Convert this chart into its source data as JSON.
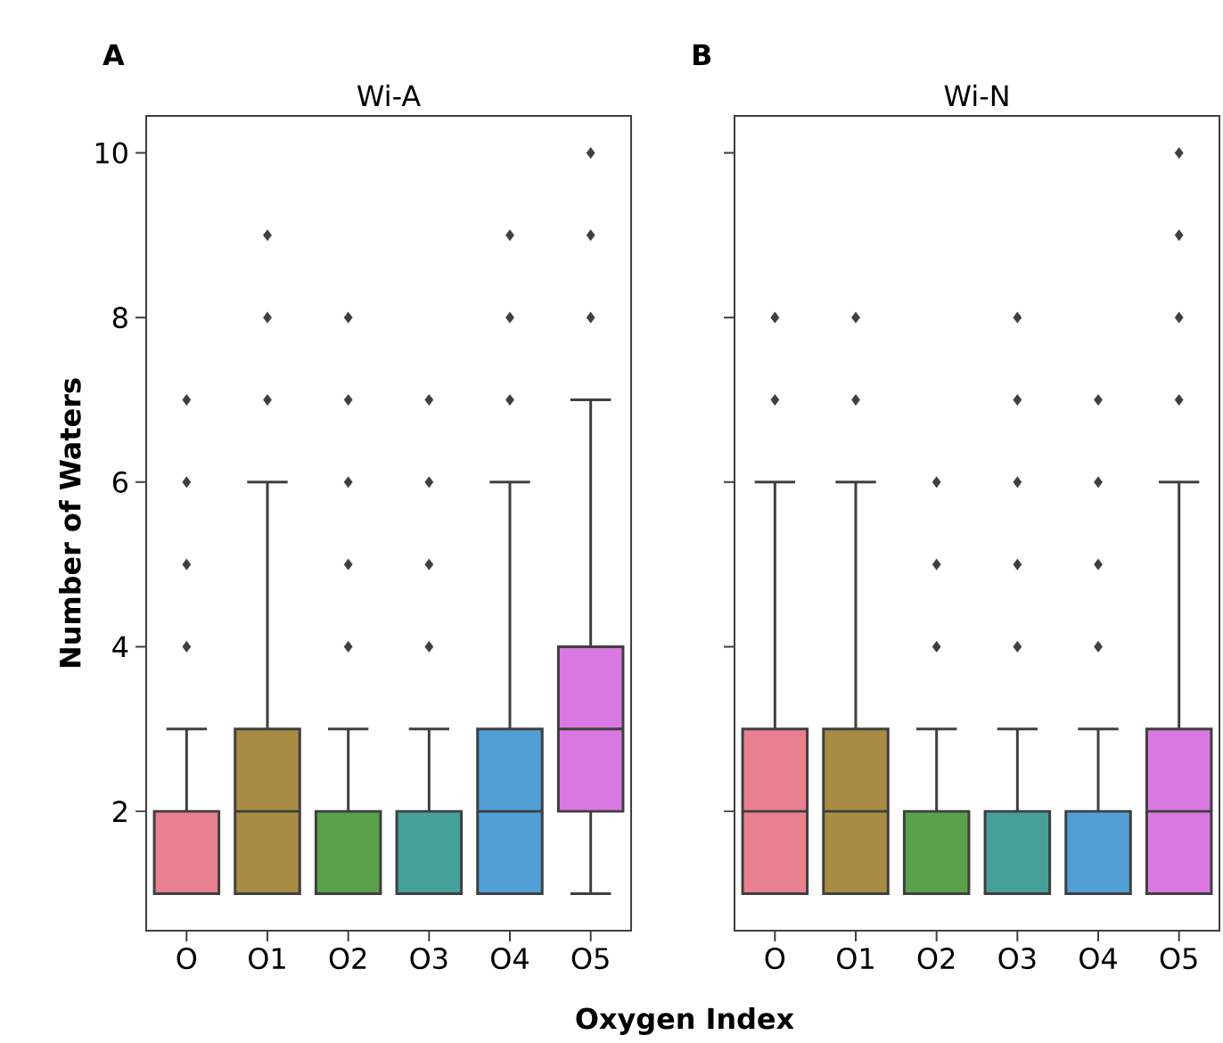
{
  "chart_data": [
    {
      "type": "box",
      "title": "Wi-A",
      "xlabel": "Oxygen Index",
      "ylabel": "Number of Waters",
      "annotations": [
        "A"
      ],
      "marker": "diamond",
      "categories": [
        "O",
        "O1",
        "O2",
        "O3",
        "O4",
        "O5"
      ],
      "colors": [
        "#e8808f",
        "#a88c43",
        "#59a14a",
        "#45a099",
        "#519fd6",
        "#d878e0"
      ],
      "ylim": [
        0.55,
        10.45
      ],
      "yticks": [
        2,
        4,
        6,
        8,
        10
      ],
      "boxes": [
        {
          "low": 1,
          "q1": 1,
          "median": 1,
          "q3": 2,
          "high": 3,
          "outliers": [
            4,
            5,
            6,
            7
          ]
        },
        {
          "low": 1,
          "q1": 1,
          "median": 2,
          "q3": 3,
          "high": 6,
          "outliers": [
            7,
            8,
            9
          ]
        },
        {
          "low": 1,
          "q1": 1,
          "median": 1,
          "q3": 2,
          "high": 3,
          "outliers": [
            4,
            5,
            6,
            7,
            8
          ]
        },
        {
          "low": 1,
          "q1": 1,
          "median": 1,
          "q3": 2,
          "high": 3,
          "outliers": [
            4,
            5,
            6,
            7
          ]
        },
        {
          "low": 1,
          "q1": 1,
          "median": 2,
          "q3": 3,
          "high": 6,
          "outliers": [
            7,
            8,
            9
          ]
        },
        {
          "low": 1,
          "q1": 2,
          "median": 3,
          "q3": 4,
          "high": 7,
          "outliers": [
            8,
            9,
            10
          ]
        }
      ]
    },
    {
      "type": "box",
      "title": "Wi-N",
      "annotations": [
        "B"
      ],
      "marker": "diamond",
      "tick_labels": "x",
      "categories": [
        "O",
        "O1",
        "O2",
        "O3",
        "O4",
        "O5"
      ],
      "colors": [
        "#e8808f",
        "#a88c43",
        "#59a14a",
        "#45a099",
        "#519fd6",
        "#d878e0"
      ],
      "ylim": [
        0.55,
        10.45
      ],
      "yticks": [
        2,
        4,
        6,
        8,
        10
      ],
      "boxes": [
        {
          "low": 1,
          "q1": 1,
          "median": 2,
          "q3": 3,
          "high": 6,
          "outliers": [
            7,
            8
          ]
        },
        {
          "low": 1,
          "q1": 1,
          "median": 2,
          "q3": 3,
          "high": 6,
          "outliers": [
            7,
            8
          ]
        },
        {
          "low": 1,
          "q1": 1,
          "median": 1,
          "q3": 2,
          "high": 3,
          "outliers": [
            4,
            5,
            6
          ]
        },
        {
          "low": 1,
          "q1": 1,
          "median": 1,
          "q3": 2,
          "high": 3,
          "outliers": [
            4,
            5,
            6,
            7,
            8
          ]
        },
        {
          "low": 1,
          "q1": 1,
          "median": 1,
          "q3": 2,
          "high": 3,
          "outliers": [
            4,
            5,
            6,
            7
          ]
        },
        {
          "low": 1,
          "q1": 1,
          "median": 2,
          "q3": 3,
          "high": 6,
          "outliers": [
            7,
            8,
            9,
            10
          ]
        }
      ]
    }
  ]
}
